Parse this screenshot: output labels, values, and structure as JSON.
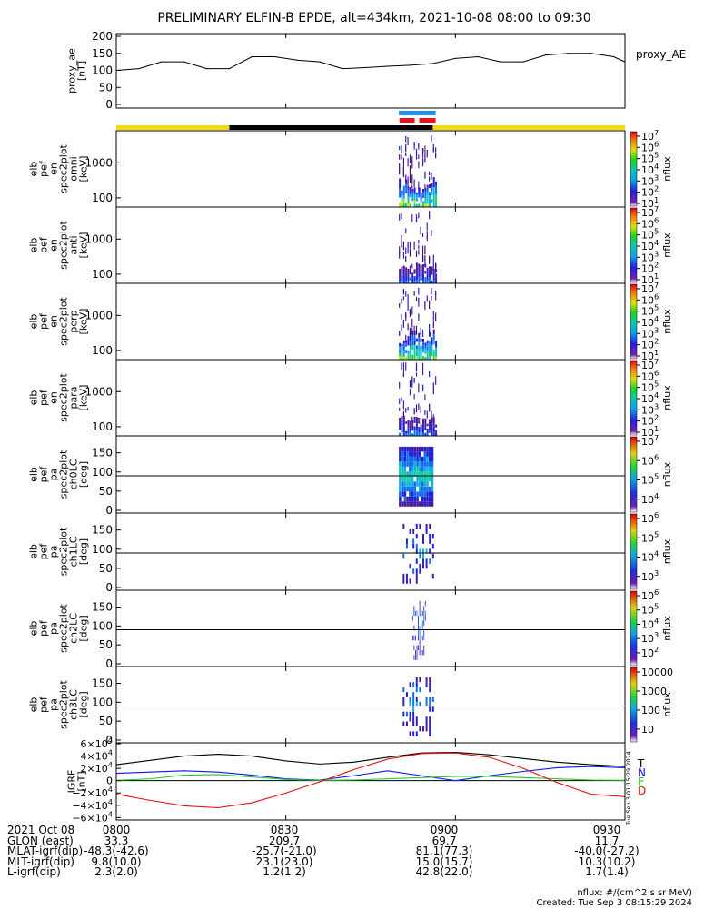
{
  "title": "PRELIMINARY ELFIN-B EPDE, alt=434km, 2021-10-08 08:00 to 09:30",
  "colors": {
    "yellow": "#f4d90e",
    "black": "#000000",
    "blue": "#1f8fe6",
    "red": "#e8121c",
    "igrf_T": "#000000",
    "igrf_N": "#1010ff",
    "igrf_E": "#22cc22",
    "igrf_D": "#e81010"
  },
  "chart_data": [
    {
      "id": "ae",
      "type": "line",
      "ylabel": [
        "proxy_ae",
        "[nT]"
      ],
      "yticks": [
        "200",
        "150",
        "100",
        "50",
        "0"
      ],
      "ylim": [
        0,
        200
      ],
      "legend": "proxy_AE",
      "x_minutes": [
        0,
        4,
        8,
        12,
        16,
        20,
        24,
        28,
        32,
        36,
        40,
        44,
        48,
        52,
        56,
        60,
        64,
        68,
        72,
        76,
        80,
        84,
        88,
        90
      ],
      "values": [
        100,
        105,
        125,
        125,
        105,
        105,
        140,
        140,
        130,
        125,
        105,
        108,
        112,
        115,
        120,
        135,
        140,
        125,
        125,
        145,
        150,
        150,
        140,
        125
      ]
    },
    {
      "id": "omni",
      "type": "heatmap",
      "ylabel": [
        "elb",
        "pef",
        "en",
        "spec2plot",
        "omni",
        "[keV]"
      ],
      "yticks": [
        "1000",
        "100"
      ],
      "colorbar_label": "nflux",
      "colorbar_ticks": [
        "10^7",
        "10^6",
        "10^5",
        "10^4",
        "10^3",
        "10^2",
        "10^1"
      ]
    },
    {
      "id": "anti",
      "type": "heatmap",
      "ylabel": [
        "elb",
        "pef",
        "en",
        "spec2plot",
        "anti",
        "[keV]"
      ],
      "yticks": [
        "1000",
        "100"
      ],
      "colorbar_label": "nflux",
      "colorbar_ticks": [
        "10^7",
        "10^6",
        "10^5",
        "10^4",
        "10^3",
        "10^2",
        "10^1"
      ]
    },
    {
      "id": "perp",
      "type": "heatmap",
      "ylabel": [
        "elb",
        "pef",
        "en",
        "spec2plot",
        "perp",
        "[keV]"
      ],
      "yticks": [
        "1000",
        "100"
      ],
      "colorbar_label": "nflux",
      "colorbar_ticks": [
        "10^7",
        "10^6",
        "10^5",
        "10^4",
        "10^3",
        "10^2",
        "10^1"
      ]
    },
    {
      "id": "para",
      "type": "heatmap",
      "ylabel": [
        "elb",
        "pef",
        "en",
        "spec2plot",
        "para",
        "[keV]"
      ],
      "yticks": [
        "1000",
        "100"
      ],
      "colorbar_label": "nflux",
      "colorbar_ticks": [
        "10^7",
        "10^6",
        "10^5",
        "10^4",
        "10^3",
        "10^2",
        "10^1"
      ]
    },
    {
      "id": "ch0",
      "type": "heatmap",
      "ylabel": [
        "elb",
        "pef",
        "pa",
        "spec2plot",
        "ch0LC",
        "[deg]"
      ],
      "yticks": [
        "150",
        "100",
        "50",
        "0"
      ],
      "colorbar_label": "nflux",
      "colorbar_ticks": [
        "10^7",
        "10^6",
        "10^5",
        "10^4"
      ]
    },
    {
      "id": "ch1",
      "type": "heatmap",
      "ylabel": [
        "elb",
        "pef",
        "pa",
        "spec2plot",
        "ch1LC",
        "[deg]"
      ],
      "yticks": [
        "150",
        "100",
        "50",
        "0"
      ],
      "colorbar_label": "nflux",
      "colorbar_ticks": [
        "10^6",
        "10^5",
        "10^4",
        "10^3"
      ]
    },
    {
      "id": "ch2",
      "type": "heatmap",
      "ylabel": [
        "elb",
        "pef",
        "pa",
        "spec2plot",
        "ch2LC",
        "[deg]"
      ],
      "yticks": [
        "150",
        "100",
        "50",
        "0"
      ],
      "colorbar_label": "nflux",
      "colorbar_ticks": [
        "10^6",
        "10^5",
        "10^4",
        "10^3",
        "10^2"
      ]
    },
    {
      "id": "ch3",
      "type": "heatmap",
      "ylabel": [
        "elb",
        "pef",
        "pa",
        "spec2plot",
        "ch3LC",
        "[deg]"
      ],
      "yticks": [
        "150",
        "100",
        "50",
        "0"
      ],
      "colorbar_label": "nflux",
      "colorbar_ticks": [
        "10000",
        "1000",
        "100",
        "10"
      ]
    },
    {
      "id": "igrf",
      "type": "line",
      "ylabel": [
        "IGRF",
        "[nT]"
      ],
      "yticks": [
        "6×10^4",
        "4×10^4",
        "2×10^4",
        "0",
        "−2×10^4",
        "−4×10^4",
        "−6×10^4"
      ],
      "ylim": [
        -60000,
        60000
      ],
      "x_minutes": [
        0,
        6,
        12,
        18,
        24,
        30,
        36,
        42,
        48,
        54,
        60,
        66,
        72,
        78,
        84,
        90
      ],
      "series": [
        {
          "name": "T",
          "values": [
            26000,
            33000,
            40000,
            43000,
            40000,
            32000,
            27000,
            30000,
            38000,
            45000,
            46000,
            42000,
            36000,
            30000,
            26000,
            23000
          ]
        },
        {
          "name": "N",
          "values": [
            12000,
            14000,
            16000,
            14000,
            9000,
            3000,
            1000,
            8000,
            16000,
            8000,
            0,
            8000,
            15000,
            21000,
            23000,
            21000
          ]
        },
        {
          "name": "E",
          "values": [
            500,
            3000,
            9000,
            10000,
            6000,
            2000,
            500,
            1000,
            3000,
            5000,
            7000,
            7000,
            5000,
            3000,
            1000,
            500
          ]
        },
        {
          "name": "D",
          "values": [
            -22000,
            -32000,
            -41000,
            -44000,
            -36000,
            -20000,
            -2000,
            18000,
            35000,
            44000,
            45000,
            38000,
            20000,
            -3000,
            -22000,
            -26000
          ]
        }
      ]
    }
  ],
  "orbit_bars": {
    "segments": [
      {
        "start_min": 0,
        "end_min": 20,
        "color": "yellow"
      },
      {
        "start_min": 20,
        "end_min": 56,
        "color": "black"
      },
      {
        "start_min": 56,
        "end_min": 90,
        "color": "yellow"
      }
    ],
    "blue_span_min": [
      50.0,
      56.5
    ],
    "red_spans_min": [
      [
        50.1,
        52.8
      ],
      [
        53.6,
        56.5
      ]
    ]
  },
  "burst_window_min": [
    50.0,
    56.8
  ],
  "xaxis": {
    "ticks": [
      {
        "label": "0800",
        "min": 0
      },
      {
        "label": "0830",
        "min": 30
      },
      {
        "label": "0900",
        "min": 60
      },
      {
        "label": "0930",
        "min": 90
      }
    ]
  },
  "footer": {
    "rows": [
      {
        "label": "2021 Oct 08",
        "values": [
          "0800",
          "0830",
          "0900",
          "0930"
        ]
      },
      {
        "label": "GLON (east)",
        "values": [
          "33.3",
          "209.7",
          "69.7",
          "11.7"
        ]
      },
      {
        "label": "MLAT-igrf(dip)",
        "values": [
          "-48.3(-42.6)",
          "-25.7(-21.0)",
          "81.1(77.3)",
          "-40.0(-27.2)"
        ]
      },
      {
        "label": "MLT-igrf(dip)",
        "values": [
          "9.8(10.0)",
          "23.1(23.0)",
          "15.0(15.7)",
          "10.3(10.2)"
        ]
      },
      {
        "label": "L-igrf(dip)",
        "values": [
          "2.3(2.0)",
          "1.2(1.2)",
          "42.8(22.0)",
          "1.7(1.4)"
        ]
      }
    ],
    "units": "nflux: #/(cm^2 s sr MeV)",
    "created": "Created: Tue Sep  3 08:15:29 2024",
    "side_stamp": "Tue Sep  3 01:15:29 2024"
  }
}
